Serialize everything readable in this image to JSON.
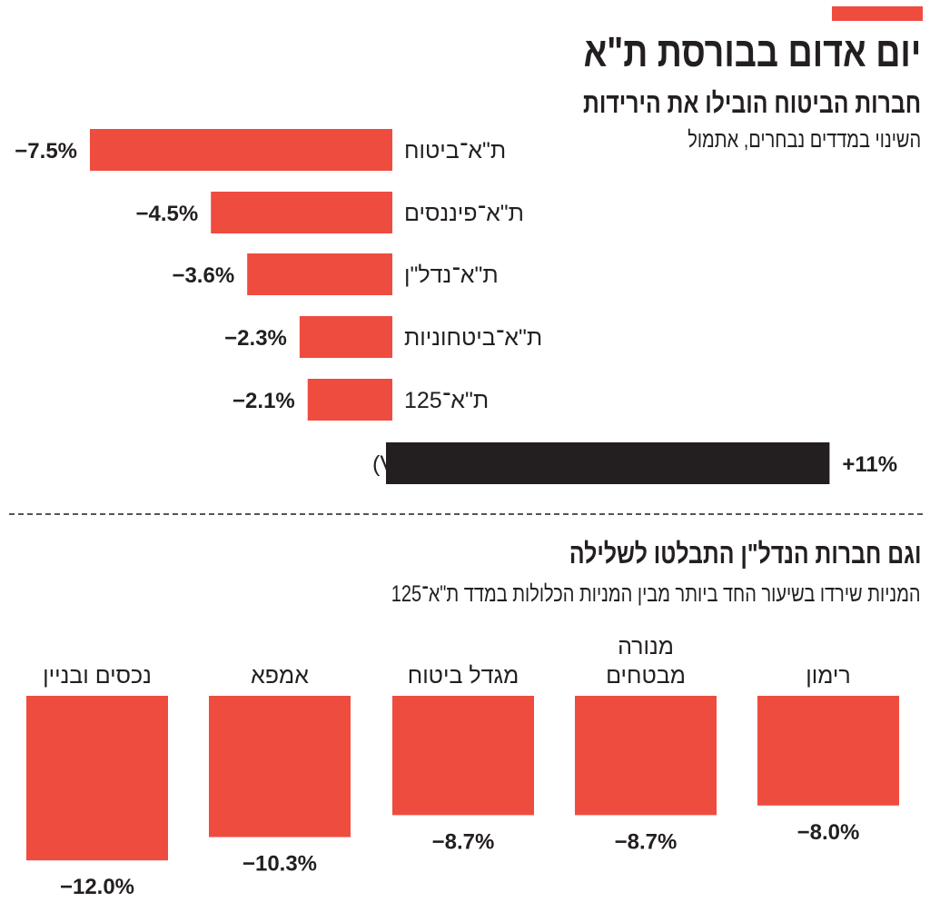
{
  "title": "יום אדום בבורסת ת\"א",
  "colors": {
    "accent": "#ef4c40",
    "bar": "#ef4c40",
    "highlight": "#231f20"
  },
  "chart_data": [
    {
      "type": "bar",
      "orientation": "horizontal",
      "title": "חברות הביטוח הובילו את הירידות",
      "subtitle": "השינוי במדדים נבחרים, אתמול",
      "categories": [
        "ת\"א־ביטוח",
        "ת\"א־פיננסים",
        "ת\"א־נדל\"ן",
        "ת\"א־ביטחוניות",
        "ת\"א־125",
        "מדד הפחד (VTA35)"
      ],
      "values": [
        -7.5,
        -4.5,
        -3.6,
        -2.3,
        -2.1,
        11
      ],
      "labels": [
        "−7.5%",
        "−4.5%",
        "−3.6%",
        "−2.3%",
        "−2.1%",
        "+11%"
      ]
    },
    {
      "type": "bar",
      "orientation": "vertical-down",
      "title": "וגם חברות הנדל\"ן התבלטו לשלילה",
      "subtitle": "המניות שירדו בשיעור החד ביותר מבין המניות הכלולות במדד ת\"א־125",
      "categories": [
        [
          "רימון"
        ],
        [
          "מנורה",
          "מבטחים"
        ],
        [
          "מגדל ביטוח"
        ],
        [
          "אמפא"
        ],
        [
          "נכסים ובניין"
        ]
      ],
      "values": [
        -8.0,
        -8.7,
        -8.7,
        -10.3,
        -12.0
      ],
      "labels": [
        "−8.0%",
        "−8.7%",
        "−8.7%",
        "−10.3%",
        "−12.0%"
      ]
    }
  ]
}
